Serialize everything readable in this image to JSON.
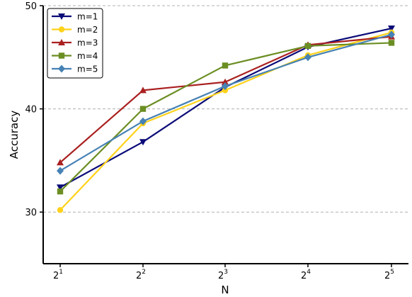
{
  "chart_data": {
    "type": "line",
    "xlabel": "N",
    "ylabel": "Accuracy",
    "x": [
      {
        "base": "2",
        "exp": "1"
      },
      {
        "base": "2",
        "exp": "2"
      },
      {
        "base": "2",
        "exp": "3"
      },
      {
        "base": "2",
        "exp": "4"
      },
      {
        "base": "2",
        "exp": "5"
      }
    ],
    "ylim": [
      25,
      50
    ],
    "yticks": [
      30,
      40,
      50
    ],
    "grid": "horizontal dashed",
    "legend_position": "top-left",
    "series": [
      {
        "name": "m=1",
        "color": "#0a0a78",
        "marker": "triangle-down",
        "values": [
          32.4,
          36.8,
          42.1,
          46.0,
          47.8
        ]
      },
      {
        "name": "m=2",
        "color": "#ffd21a",
        "marker": "circle",
        "values": [
          30.2,
          38.6,
          41.8,
          45.2,
          47.4
        ]
      },
      {
        "name": "m=3",
        "color": "#aa2020",
        "marker": "triangle-up",
        "values": [
          34.8,
          41.8,
          42.6,
          46.2,
          47.0
        ]
      },
      {
        "name": "m=4",
        "color": "#6b8e23",
        "marker": "square",
        "values": [
          32.0,
          40.0,
          44.2,
          46.1,
          46.4
        ]
      },
      {
        "name": "m=5",
        "color": "#4682b4",
        "marker": "diamond",
        "values": [
          34.0,
          38.8,
          42.2,
          45.0,
          47.2
        ]
      }
    ]
  }
}
